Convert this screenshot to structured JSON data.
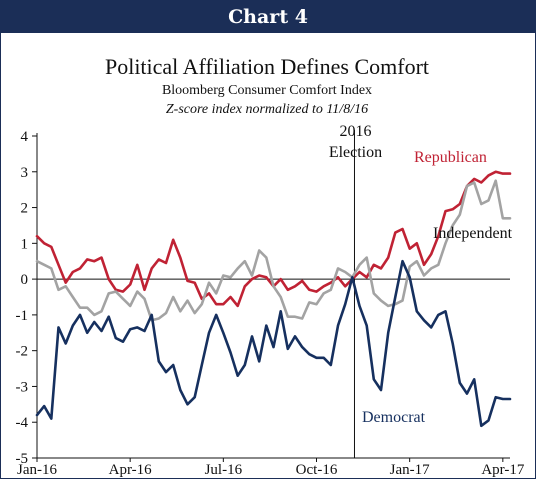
{
  "header": {
    "label": "Chart 4"
  },
  "chart_data": {
    "type": "line",
    "title": "Political Affiliation Defines Comfort",
    "subtitle": "Bloomberg Consumer Comfort Index",
    "subtitle2": "Z-score index normalized to 11/8/16",
    "xlabel": "",
    "ylabel": "",
    "ylim": [
      -5,
      4
    ],
    "yticks": [
      "4",
      "3",
      "2",
      "1",
      "0",
      "-1",
      "-2",
      "-3",
      "-4",
      "-5"
    ],
    "xlim": [
      0,
      66
    ],
    "xticks": [
      {
        "x": 0,
        "label": "Jan-16"
      },
      {
        "x": 13,
        "label": "Apr-16"
      },
      {
        "x": 26,
        "label": "Jul-16"
      },
      {
        "x": 39,
        "label": "Oct-16"
      },
      {
        "x": 52,
        "label": "Jan-17"
      },
      {
        "x": 65,
        "label": "Apr-17"
      }
    ],
    "event": {
      "x": 44.3,
      "line1": "2016",
      "line2": "Election"
    },
    "grid": false,
    "annotations": {
      "republican": "Republican",
      "independent": "Independent",
      "democrat": "Democrat"
    },
    "colors": {
      "republican": "#c02234",
      "independent": "#a3a3a3",
      "democrat": "#16305f",
      "header": "#1b2e57"
    },
    "series": [
      {
        "name": "Republican",
        "key": "republican",
        "x": [
          0,
          1,
          2,
          3,
          4,
          5,
          6,
          7,
          8,
          9,
          10,
          11,
          12,
          13,
          14,
          15,
          16,
          17,
          18,
          19,
          20,
          21,
          22,
          23,
          24,
          25,
          26,
          27,
          28,
          29,
          30,
          31,
          32,
          33,
          34,
          35,
          36,
          37,
          38,
          39,
          40,
          41,
          42,
          43,
          44,
          45,
          46,
          47,
          48,
          49,
          50,
          51,
          52,
          53,
          54,
          55,
          56,
          57,
          58,
          59,
          60,
          61,
          62,
          63,
          64,
          65,
          66
        ],
        "values": [
          1.2,
          1.0,
          0.9,
          0.4,
          -0.1,
          0.2,
          0.3,
          0.55,
          0.5,
          0.6,
          0.0,
          -0.3,
          -0.35,
          -0.15,
          0.4,
          -0.3,
          0.3,
          0.55,
          0.45,
          1.1,
          0.6,
          -0.05,
          -0.1,
          -0.55,
          -0.4,
          -0.7,
          -0.7,
          -0.5,
          -0.75,
          -0.2,
          0.0,
          0.1,
          0.05,
          -0.2,
          0.0,
          -0.3,
          -0.2,
          -0.05,
          -0.3,
          -0.35,
          -0.2,
          -0.1,
          0.05,
          -0.2,
          0.0,
          0.2,
          0.05,
          0.4,
          0.3,
          0.6,
          1.3,
          1.4,
          0.85,
          1.0,
          0.4,
          0.7,
          1.2,
          1.9,
          1.95,
          2.1,
          2.6,
          2.8,
          2.7,
          2.9,
          3.0,
          2.95,
          2.95
        ],
        "note": ""
      },
      {
        "name": "Independent",
        "key": "independent",
        "x": [
          0,
          1,
          2,
          3,
          4,
          5,
          6,
          7,
          8,
          9,
          10,
          11,
          12,
          13,
          14,
          15,
          16,
          17,
          18,
          19,
          20,
          21,
          22,
          23,
          24,
          25,
          26,
          27,
          28,
          29,
          30,
          31,
          32,
          33,
          34,
          35,
          36,
          37,
          38,
          39,
          40,
          41,
          42,
          43,
          44,
          45,
          46,
          47,
          48,
          49,
          50,
          51,
          52,
          53,
          54,
          55,
          56,
          57,
          58,
          59,
          60,
          61,
          62,
          63,
          64,
          65,
          66
        ],
        "values": [
          0.5,
          0.4,
          0.3,
          -0.3,
          -0.2,
          -0.5,
          -0.8,
          -0.8,
          -1.0,
          -0.9,
          -0.4,
          -0.35,
          -0.55,
          -0.75,
          -0.35,
          -0.55,
          -1.15,
          -1.1,
          -0.95,
          -0.5,
          -0.9,
          -0.6,
          -0.95,
          -0.7,
          -0.1,
          -0.4,
          0.1,
          0.05,
          0.3,
          0.5,
          0.1,
          0.8,
          0.6,
          -0.2,
          -0.5,
          -1.05,
          -1.05,
          -1.1,
          -0.65,
          -0.7,
          -0.4,
          -0.3,
          0.3,
          0.2,
          0.05,
          0.4,
          0.6,
          -0.4,
          -0.6,
          -0.75,
          -0.7,
          -0.6,
          0.35,
          0.5,
          0.1,
          0.3,
          0.4,
          1.0,
          1.5,
          1.8,
          2.6,
          2.7,
          2.1,
          2.2,
          2.75,
          1.7,
          1.7
        ],
        "note": ""
      },
      {
        "name": "Democrat",
        "key": "democrat",
        "x": [
          0,
          1,
          2,
          3,
          4,
          5,
          6,
          7,
          8,
          9,
          10,
          11,
          12,
          13,
          14,
          15,
          16,
          17,
          18,
          19,
          20,
          21,
          22,
          23,
          24,
          25,
          26,
          27,
          28,
          29,
          30,
          31,
          32,
          33,
          34,
          35,
          36,
          37,
          38,
          39,
          40,
          41,
          42,
          43,
          44,
          45,
          46,
          47,
          48,
          49,
          50,
          51,
          52,
          53,
          54,
          55,
          56,
          57,
          58,
          59,
          60,
          61,
          62,
          63,
          64,
          65,
          66
        ],
        "values": [
          -3.8,
          -3.55,
          -3.9,
          -1.35,
          -1.8,
          -1.3,
          -1.0,
          -1.5,
          -1.2,
          -1.45,
          -1.05,
          -1.65,
          -1.75,
          -1.4,
          -1.35,
          -1.45,
          -1.0,
          -2.3,
          -2.6,
          -2.4,
          -3.1,
          -3.5,
          -3.3,
          -2.4,
          -1.5,
          -1.0,
          -1.5,
          -2.05,
          -2.7,
          -2.4,
          -1.6,
          -2.3,
          -1.3,
          -1.9,
          -0.9,
          -1.95,
          -1.6,
          -1.9,
          -2.1,
          -2.2,
          -2.2,
          -2.4,
          -1.3,
          -0.7,
          0.05,
          -0.75,
          -1.3,
          -2.8,
          -3.1,
          -1.5,
          -0.5,
          0.5,
          0.05,
          -0.9,
          -1.15,
          -1.35,
          -1.0,
          -0.9,
          -1.8,
          -2.9,
          -3.2,
          -2.8,
          -4.1,
          -3.95,
          -3.3,
          -3.35,
          -3.35
        ],
        "note": ""
      }
    ]
  }
}
